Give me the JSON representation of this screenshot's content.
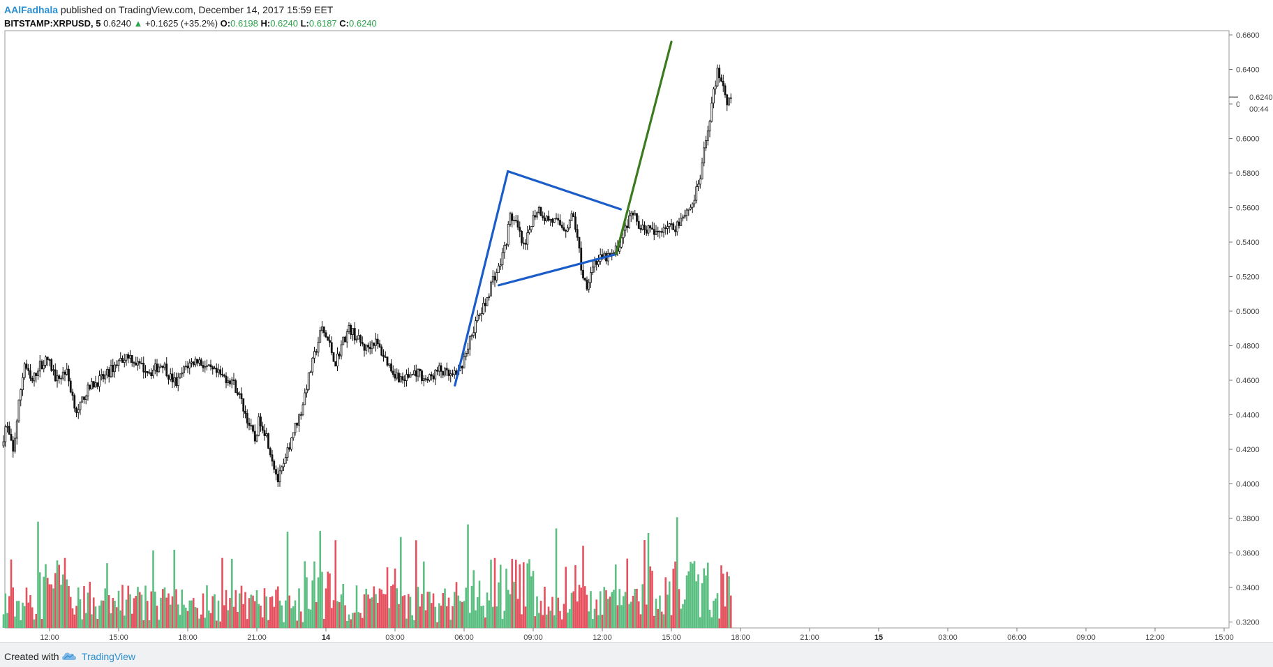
{
  "header": {
    "author": "AAlFadhala",
    "published_text": "published on TradingView.com, December 14, 2017 15:59 EET",
    "symbol": "BITSTAMP:XRPUSD, 5",
    "last": "0.6240",
    "change_arrow": "▲",
    "change": "+0.1625 (+35.2%)",
    "o_label": "O:",
    "o_value": "0.6198",
    "h_label": "H:",
    "h_value": "0.6240",
    "l_label": "L:",
    "l_value": "0.6187",
    "c_label": "C:",
    "c_value": "0.6240"
  },
  "price_tag": {
    "price": "0.6240",
    "countdown": "00:44"
  },
  "footer": {
    "created_with": "Created with",
    "brand": "TradingView"
  },
  "colors": {
    "up": "#2aa34a",
    "vol_up": "#5bbf82",
    "vol_down": "#e5515e",
    "blue_lines": "#1a5cc8",
    "green_line": "#3c7a1e"
  },
  "chart_data": {
    "type": "candlestick",
    "interval": "5",
    "y_ticks": [
      "0.6600",
      "0.6400",
      "0.6200",
      "0.6000",
      "0.5800",
      "0.5600",
      "0.5400",
      "0.5200",
      "0.5000",
      "0.4800",
      "0.4600",
      "0.4400",
      "0.4200",
      "0.4000",
      "0.3800",
      "0.3600",
      "0.3400",
      "0.3200"
    ],
    "x_ticks": [
      {
        "label": "12:00",
        "hour": 12,
        "bold": false
      },
      {
        "label": "15:00",
        "hour": 15,
        "bold": false
      },
      {
        "label": "18:00",
        "hour": 18,
        "bold": false
      },
      {
        "label": "21:00",
        "hour": 21,
        "bold": false
      },
      {
        "label": "14",
        "hour": 24,
        "bold": true
      },
      {
        "label": "03:00",
        "hour": 27,
        "bold": false
      },
      {
        "label": "06:00",
        "hour": 30,
        "bold": false
      },
      {
        "label": "09:00",
        "hour": 33,
        "bold": false
      },
      {
        "label": "12:00",
        "hour": 36,
        "bold": false
      },
      {
        "label": "15:00",
        "hour": 39,
        "bold": false
      },
      {
        "label": "18:00",
        "hour": 42,
        "bold": false
      },
      {
        "label": "21:00",
        "hour": 45,
        "bold": false
      },
      {
        "label": "15",
        "hour": 48,
        "bold": true
      },
      {
        "label": "03:00",
        "hour": 51,
        "bold": false
      },
      {
        "label": "06:00",
        "hour": 54,
        "bold": false
      },
      {
        "label": "09:00",
        "hour": 57,
        "bold": false
      },
      {
        "label": "12:00",
        "hour": 60,
        "bold": false
      },
      {
        "label": "15:00",
        "hour": 63,
        "bold": false
      }
    ],
    "price_path": [
      [
        10.0,
        0.422
      ],
      [
        10.2,
        0.435
      ],
      [
        10.5,
        0.418
      ],
      [
        10.8,
        0.452
      ],
      [
        11.0,
        0.47
      ],
      [
        11.3,
        0.458
      ],
      [
        11.6,
        0.468
      ],
      [
        12.0,
        0.472
      ],
      [
        12.4,
        0.46
      ],
      [
        12.8,
        0.466
      ],
      [
        13.0,
        0.455
      ],
      [
        13.3,
        0.44
      ],
      [
        13.6,
        0.452
      ],
      [
        14.0,
        0.458
      ],
      [
        14.5,
        0.462
      ],
      [
        15.0,
        0.47
      ],
      [
        15.5,
        0.475
      ],
      [
        16.0,
        0.468
      ],
      [
        16.5,
        0.465
      ],
      [
        17.0,
        0.47
      ],
      [
        17.3,
        0.462
      ],
      [
        17.6,
        0.458
      ],
      [
        18.0,
        0.468
      ],
      [
        18.5,
        0.472
      ],
      [
        19.0,
        0.466
      ],
      [
        19.6,
        0.462
      ],
      [
        20.0,
        0.46
      ],
      [
        20.3,
        0.452
      ],
      [
        20.6,
        0.44
      ],
      [
        21.0,
        0.425
      ],
      [
        21.2,
        0.438
      ],
      [
        21.5,
        0.428
      ],
      [
        21.8,
        0.412
      ],
      [
        22.0,
        0.402
      ],
      [
        22.3,
        0.412
      ],
      [
        22.6,
        0.428
      ],
      [
        23.0,
        0.442
      ],
      [
        23.3,
        0.46
      ],
      [
        23.6,
        0.475
      ],
      [
        23.9,
        0.49
      ],
      [
        24.2,
        0.482
      ],
      [
        24.5,
        0.47
      ],
      [
        24.8,
        0.482
      ],
      [
        25.1,
        0.49
      ],
      [
        25.4,
        0.485
      ],
      [
        25.8,
        0.478
      ],
      [
        26.2,
        0.483
      ],
      [
        26.6,
        0.474
      ],
      [
        27.0,
        0.465
      ],
      [
        27.4,
        0.46
      ],
      [
        28.0,
        0.465
      ],
      [
        28.5,
        0.46
      ],
      [
        29.0,
        0.466
      ],
      [
        29.5,
        0.462
      ],
      [
        29.8,
        0.463
      ],
      [
        30.0,
        0.47
      ],
      [
        30.3,
        0.482
      ],
      [
        30.6,
        0.494
      ],
      [
        31.0,
        0.504
      ],
      [
        31.3,
        0.518
      ],
      [
        31.6,
        0.525
      ],
      [
        31.9,
        0.54
      ],
      [
        32.1,
        0.556
      ],
      [
        32.4,
        0.548
      ],
      [
        32.7,
        0.535
      ],
      [
        33.0,
        0.552
      ],
      [
        33.3,
        0.56
      ],
      [
        33.6,
        0.554
      ],
      [
        34.0,
        0.552
      ],
      [
        34.5,
        0.548
      ],
      [
        34.8,
        0.556
      ],
      [
        35.0,
        0.544
      ],
      [
        35.2,
        0.522
      ],
      [
        35.4,
        0.515
      ],
      [
        35.7,
        0.528
      ],
      [
        36.0,
        0.53
      ],
      [
        36.5,
        0.532
      ],
      [
        36.8,
        0.538
      ],
      [
        37.0,
        0.545
      ],
      [
        37.2,
        0.552
      ],
      [
        37.4,
        0.556
      ],
      [
        37.7,
        0.55
      ],
      [
        38.0,
        0.548
      ],
      [
        38.4,
        0.544
      ],
      [
        38.8,
        0.55
      ],
      [
        39.2,
        0.548
      ],
      [
        39.6,
        0.556
      ],
      [
        40.0,
        0.562
      ],
      [
        40.3,
        0.575
      ],
      [
        40.6,
        0.6
      ],
      [
        40.9,
        0.625
      ],
      [
        41.1,
        0.64
      ],
      [
        41.3,
        0.632
      ],
      [
        41.5,
        0.622
      ],
      [
        41.6,
        0.624
      ]
    ],
    "annotations": {
      "pole": [
        [
          29.6,
          0.457
        ],
        [
          31.9,
          0.581
        ]
      ],
      "flag_top": [
        [
          31.9,
          0.581
        ],
        [
          36.8,
          0.559
        ]
      ],
      "flag_bottom": [
        [
          31.5,
          0.515
        ],
        [
          36.6,
          0.533
        ]
      ],
      "breakout": [
        [
          36.6,
          0.533
        ],
        [
          39.0,
          0.656
        ]
      ]
    }
  }
}
